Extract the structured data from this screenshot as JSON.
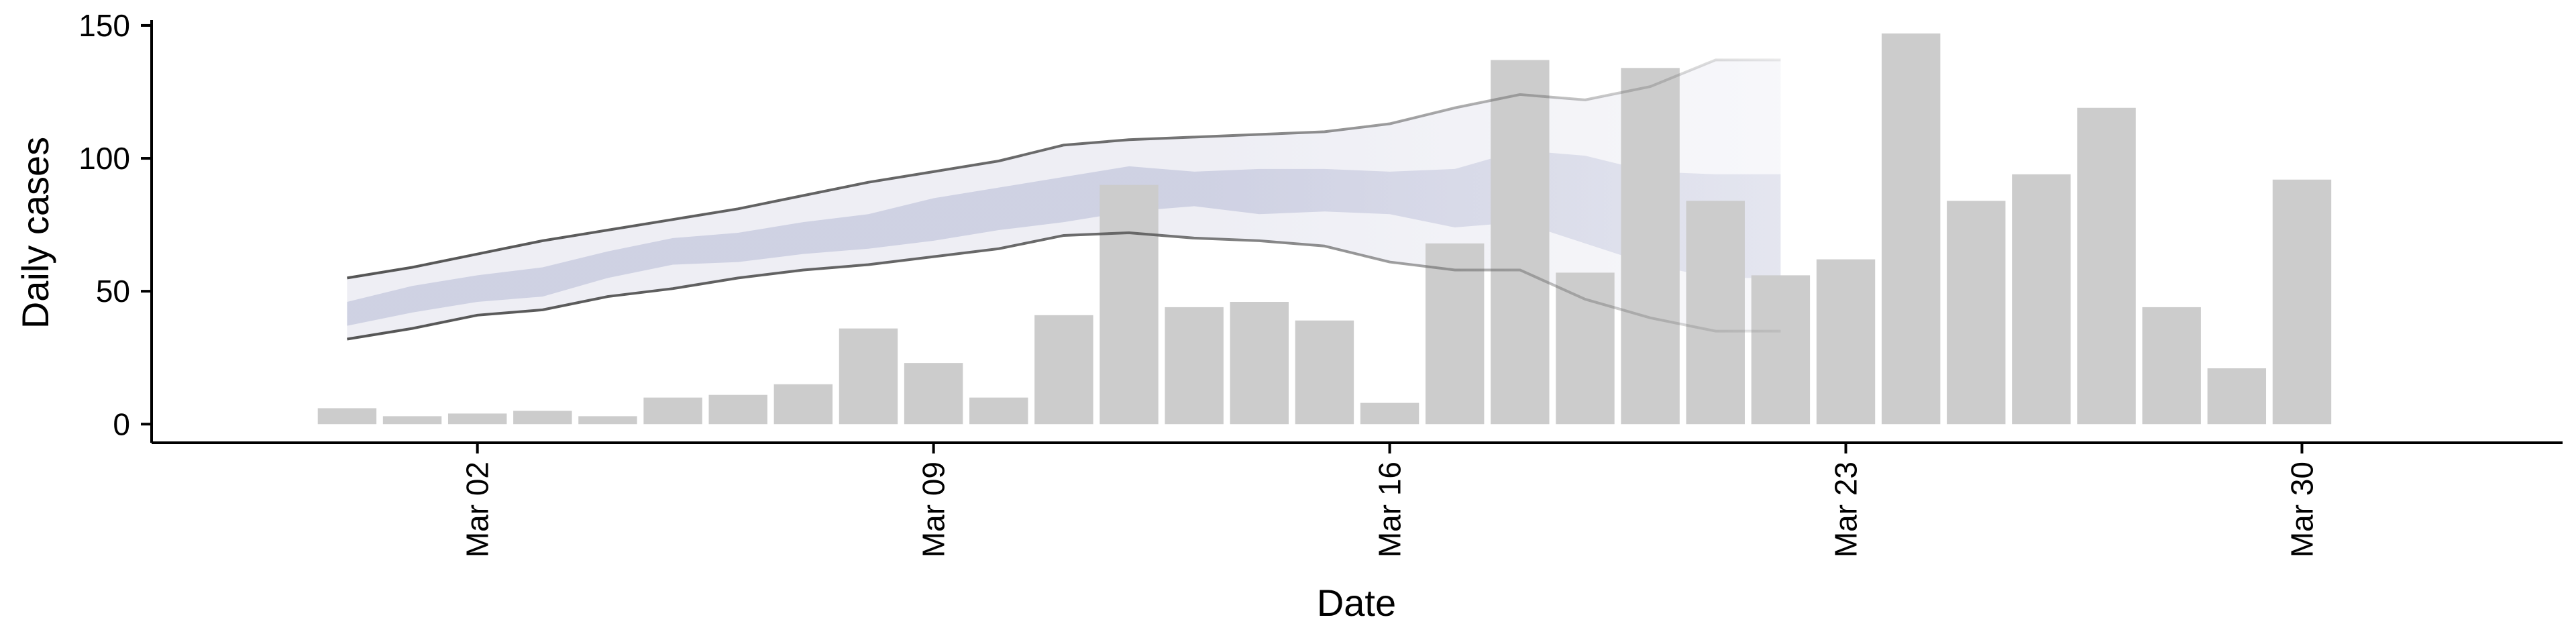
{
  "chart_data": {
    "type": "bar",
    "xlabel": "Date",
    "ylabel": "Daily cases",
    "x_ticks": [
      "Mar 02",
      "Mar 09",
      "Mar 16",
      "Mar 23",
      "Mar 30"
    ],
    "x_tick_positions": [
      "2020-03-02",
      "2020-03-09",
      "2020-03-16",
      "2020-03-23",
      "2020-03-30"
    ],
    "y_ticks": [
      0,
      50,
      100,
      150
    ],
    "xlim": [
      "2020-02-26",
      "2020-04-03"
    ],
    "ylim": [
      -7,
      152
    ],
    "grid": false,
    "colors": {
      "bars": "#cccccc",
      "band_outer": "#9ea0c4",
      "band_inner": "#8e95be",
      "bound_lines": "#555555",
      "axis": "#000000"
    },
    "series": [
      {
        "type": "bar",
        "dates": [
          "2020-02-29",
          "2020-03-01",
          "2020-03-02",
          "2020-03-03",
          "2020-03-04",
          "2020-03-05",
          "2020-03-06",
          "2020-03-07",
          "2020-03-08",
          "2020-03-09",
          "2020-03-10",
          "2020-03-11",
          "2020-03-12",
          "2020-03-13",
          "2020-03-14",
          "2020-03-15",
          "2020-03-16",
          "2020-03-17",
          "2020-03-18",
          "2020-03-19",
          "2020-03-20",
          "2020-03-21",
          "2020-03-22",
          "2020-03-23",
          "2020-03-24",
          "2020-03-25",
          "2020-03-26",
          "2020-03-27",
          "2020-03-28",
          "2020-03-29",
          "2020-03-30",
          "2020-03-31"
        ],
        "values": [
          6,
          3,
          4,
          5,
          3,
          10,
          11,
          15,
          36,
          23,
          10,
          41,
          90,
          44,
          46,
          39,
          8,
          68,
          137,
          57,
          134,
          84,
          56,
          62,
          147,
          84,
          94,
          119,
          44,
          21,
          92,
          0
        ]
      },
      {
        "type": "band",
        "level": "outer",
        "dates": [
          "2020-02-29",
          "2020-03-01",
          "2020-03-02",
          "2020-03-03",
          "2020-03-04",
          "2020-03-05",
          "2020-03-06",
          "2020-03-07",
          "2020-03-08",
          "2020-03-09",
          "2020-03-10",
          "2020-03-11",
          "2020-03-12",
          "2020-03-13",
          "2020-03-14",
          "2020-03-15",
          "2020-03-16",
          "2020-03-17",
          "2020-03-18",
          "2020-03-19",
          "2020-03-20",
          "2020-03-21",
          "2020-03-22"
        ],
        "lower": [
          32,
          36,
          41,
          43,
          48,
          51,
          55,
          58,
          60,
          63,
          66,
          71,
          72,
          70,
          69,
          67,
          61,
          58,
          58,
          47,
          40,
          35,
          35
        ],
        "upper": [
          55,
          59,
          64,
          69,
          73,
          77,
          81,
          86,
          91,
          95,
          99,
          105,
          107,
          108,
          109,
          110,
          113,
          119,
          124,
          122,
          127,
          137,
          137
        ]
      },
      {
        "type": "band",
        "level": "inner",
        "dates": [
          "2020-02-29",
          "2020-03-01",
          "2020-03-02",
          "2020-03-03",
          "2020-03-04",
          "2020-03-05",
          "2020-03-06",
          "2020-03-07",
          "2020-03-08",
          "2020-03-09",
          "2020-03-10",
          "2020-03-11",
          "2020-03-12",
          "2020-03-13",
          "2020-03-14",
          "2020-03-15",
          "2020-03-16",
          "2020-03-17",
          "2020-03-18",
          "2020-03-19",
          "2020-03-20",
          "2020-03-21",
          "2020-03-22"
        ],
        "lower": [
          37,
          42,
          46,
          48,
          55,
          60,
          61,
          64,
          66,
          69,
          73,
          76,
          80,
          82,
          79,
          80,
          79,
          74,
          76,
          68,
          60,
          55,
          55
        ],
        "upper": [
          46,
          52,
          56,
          59,
          65,
          70,
          72,
          76,
          79,
          85,
          89,
          93,
          97,
          95,
          96,
          96,
          95,
          96,
          103,
          101,
          95,
          94,
          94
        ]
      }
    ]
  }
}
